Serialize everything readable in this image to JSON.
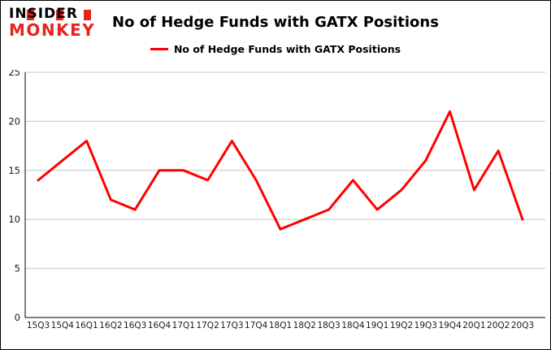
{
  "logo": {
    "line1": "INSIDER",
    "line2": "MONKEY"
  },
  "header": {
    "title": "No of Hedge Funds with GATX Positions"
  },
  "legend": {
    "label": "No of Hedge Funds with GATX Positions"
  },
  "colors": {
    "series_line": "#ff0000",
    "logo_red": "#e8231d",
    "gridline": "#c6c6c6",
    "axis": "#000000",
    "tick_text": "#1a1a1a"
  },
  "chart_data": {
    "type": "line",
    "title": "No of Hedge Funds with GATX Positions",
    "series_name": "No of Hedge Funds with GATX Positions",
    "categories": [
      "15Q3",
      "15Q4",
      "16Q1",
      "16Q2",
      "16Q3",
      "16Q4",
      "17Q1",
      "17Q2",
      "17Q3",
      "17Q4",
      "18Q1",
      "18Q2",
      "18Q3",
      "18Q4",
      "19Q1",
      "19Q2",
      "19Q3",
      "19Q4",
      "20Q1",
      "20Q2",
      "20Q3"
    ],
    "values": [
      14,
      16,
      18,
      12,
      11,
      15,
      15,
      14,
      18,
      14,
      9,
      10,
      11,
      14,
      11,
      13,
      16,
      21,
      13,
      17,
      10
    ],
    "xlabel": "",
    "ylabel": "",
    "ylim": [
      0,
      25
    ],
    "yticks": [
      0,
      5,
      10,
      15,
      20,
      25
    ],
    "grid": true,
    "legend_position": "top",
    "line_color": "#ff0000"
  }
}
